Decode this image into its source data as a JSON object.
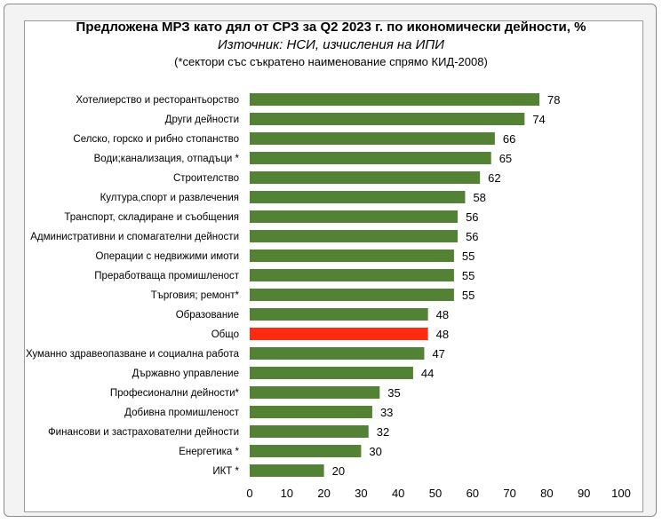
{
  "colors": {
    "bar": "#548235",
    "highlight": "#ff2a10",
    "frame_bg": "#f3f3f3",
    "plot_bg": "#ffffff"
  },
  "header": {
    "title": "Предложена МРЗ като дял от СРЗ за Q2 2023 г. по икономически дейности, %",
    "source": "Източник: НСИ, изчисления на ИПИ",
    "note": "(*сектори със съкратено наименование спрямо КИД-2008)"
  },
  "chart_data": {
    "type": "bar",
    "orientation": "horizontal",
    "title": "Предложена МРЗ като дял от СРЗ за Q2 2023 г. по икономически дейности, %",
    "subtitle": "Източник: НСИ, изчисления на ИПИ",
    "annotation": "(*сектори със съкратено наименование спрямо КИД-2008)",
    "xlabel": "",
    "ylabel": "",
    "xlim": [
      0,
      100
    ],
    "xticks": [
      0,
      10,
      20,
      30,
      40,
      50,
      60,
      70,
      80,
      90,
      100
    ],
    "grid": false,
    "legend": "none",
    "data_labels": true,
    "highlighted_category": "Общо",
    "categories": [
      "Хотелиерство и ресторантьорство",
      "Други дейности",
      "Селско, горско и рибно стопанство",
      "Води;канализация, отпадъци *",
      "Строителство",
      "Култура,спорт и развлечения",
      "Транспорт, складиране и съобщения",
      "Административни и спомагателни дейности",
      "Операции с недвижими имоти",
      "Преработваща промишленост",
      "Търговия; ремонт*",
      "Образование",
      "Общо",
      "Хуманно здравеопазване и социална работа",
      "Държавно управление",
      "Професионални дейности*",
      "Добивна промишленост",
      "Финансови и застрахователни дейности",
      "Енергетика *",
      "ИКТ *"
    ],
    "values": [
      78,
      74,
      66,
      65,
      62,
      58,
      56,
      56,
      55,
      55,
      55,
      48,
      48,
      47,
      44,
      35,
      33,
      32,
      30,
      20
    ]
  }
}
